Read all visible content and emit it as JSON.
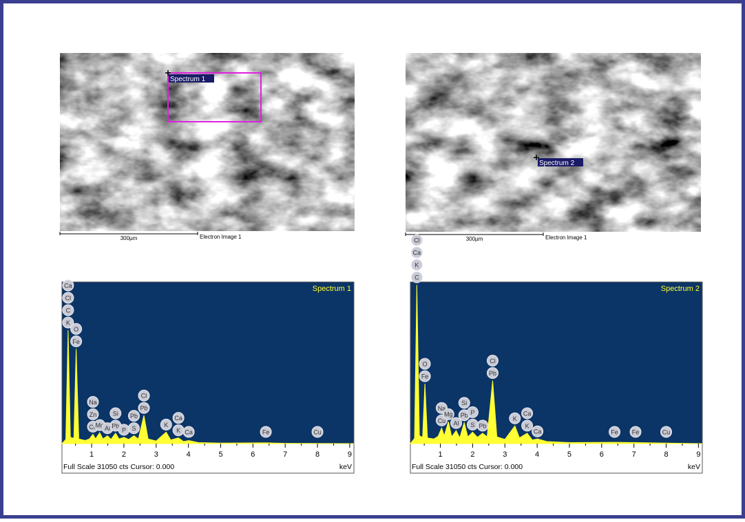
{
  "images": [
    {
      "marker": "Spectrum 1",
      "scale": "300µm",
      "caption": "Electron Image 1"
    },
    {
      "marker": "Spectrum 2",
      "scale": "300µm",
      "caption": "Electron Image 1"
    }
  ],
  "chart_data": [
    {
      "type": "spectrum",
      "title": "Spectrum 1",
      "footer": "Full Scale 31050 cts Cursor: 0.000",
      "x_label": "keV",
      "xlim": [
        0.08,
        9.13
      ],
      "xticks": [
        1,
        2,
        3,
        4,
        5,
        6,
        7,
        8,
        9
      ],
      "ylim": [
        0,
        31050
      ],
      "color": "#ffff33",
      "x": [
        0.08,
        0.2,
        0.27,
        0.34,
        0.45,
        0.52,
        0.6,
        0.8,
        0.93,
        1.04,
        1.12,
        1.25,
        1.35,
        1.49,
        1.6,
        1.74,
        1.85,
        2.0,
        2.15,
        2.31,
        2.45,
        2.62,
        2.75,
        3.0,
        3.31,
        3.45,
        3.69,
        3.85,
        4.01,
        4.3,
        5.0,
        6.4,
        7.0,
        9.13
      ],
      "values": [
        0,
        800,
        21800,
        1200,
        1000,
        18200,
        900,
        600,
        900,
        1800,
        900,
        2100,
        900,
        1500,
        800,
        2000,
        900,
        1200,
        800,
        1500,
        900,
        5400,
        900,
        500,
        2200,
        700,
        1100,
        400,
        600,
        200,
        100,
        150,
        50,
        0
      ],
      "peak_labels": [
        {
          "x": 0.27,
          "labels": [
            "Ca",
            "Cl",
            "C",
            "K"
          ]
        },
        {
          "x": 0.52,
          "labels": [
            "O",
            "Fe"
          ]
        },
        {
          "x": 1.04,
          "labels": [
            "Na",
            "Zn",
            "Cu"
          ]
        },
        {
          "x": 1.25,
          "labels": [
            "Mg"
          ]
        },
        {
          "x": 1.49,
          "labels": [
            "Al"
          ]
        },
        {
          "x": 1.74,
          "labels": [
            "Si",
            "Pb"
          ]
        },
        {
          "x": 2.0,
          "labels": [
            "P"
          ]
        },
        {
          "x": 2.31,
          "labels": [
            "Pb",
            "S"
          ]
        },
        {
          "x": 2.62,
          "labels": [
            "Cl",
            "Pb"
          ]
        },
        {
          "x": 3.31,
          "labels": [
            "K"
          ]
        },
        {
          "x": 3.69,
          "labels": [
            "Ca",
            "K"
          ]
        },
        {
          "x": 4.01,
          "labels": [
            "Ca"
          ]
        },
        {
          "x": 6.4,
          "labels": [
            "Fe"
          ]
        },
        {
          "x": 8.0,
          "labels": [
            "Cu"
          ]
        }
      ]
    },
    {
      "type": "spectrum",
      "title": "Spectrum 2",
      "footer": "Full Scale 31050 cts Cursor: 0.000",
      "x_label": "keV",
      "xlim": [
        0.07,
        9.12
      ],
      "xticks": [
        1,
        2,
        3,
        4,
        5,
        6,
        7,
        8,
        9
      ],
      "ylim": [
        0,
        31050
      ],
      "color": "#ffff33",
      "x": [
        0.07,
        0.2,
        0.27,
        0.35,
        0.45,
        0.52,
        0.6,
        0.8,
        0.93,
        1.04,
        1.12,
        1.25,
        1.35,
        1.49,
        1.6,
        1.74,
        1.85,
        2.0,
        2.15,
        2.31,
        2.45,
        2.62,
        2.75,
        3.0,
        3.31,
        3.45,
        3.69,
        3.85,
        4.01,
        4.3,
        5.0,
        6.4,
        7.05,
        8.0,
        9.12
      ],
      "values": [
        0,
        1000,
        30500,
        1500,
        1200,
        11500,
        1100,
        900,
        1400,
        3000,
        1500,
        4200,
        1300,
        2500,
        1100,
        4000,
        1300,
        2200,
        1200,
        2000,
        1300,
        12100,
        1300,
        800,
        3400,
        1100,
        2000,
        700,
        900,
        400,
        200,
        250,
        200,
        100,
        0
      ],
      "peak_labels": [
        {
          "x": 0.27,
          "labels": [
            "Cl",
            "Ca",
            "K",
            "C"
          ]
        },
        {
          "x": 0.52,
          "labels": [
            "O",
            "Fe"
          ]
        },
        {
          "x": 1.04,
          "labels": [
            "Na",
            "Cu"
          ]
        },
        {
          "x": 1.25,
          "labels": [
            "Mg"
          ]
        },
        {
          "x": 1.49,
          "labels": [
            "Al"
          ]
        },
        {
          "x": 1.74,
          "labels": [
            "Si",
            "Pb"
          ]
        },
        {
          "x": 2.0,
          "labels": [
            "P",
            "S"
          ]
        },
        {
          "x": 2.31,
          "labels": [
            "Pb"
          ]
        },
        {
          "x": 2.62,
          "labels": [
            "Cl",
            "Pb"
          ]
        },
        {
          "x": 3.31,
          "labels": [
            "K"
          ]
        },
        {
          "x": 3.69,
          "labels": [
            "Ca",
            "K"
          ]
        },
        {
          "x": 4.01,
          "labels": [
            "Ca"
          ]
        },
        {
          "x": 6.4,
          "labels": [
            "Fe"
          ]
        },
        {
          "x": 7.05,
          "labels": [
            "Fe"
          ]
        },
        {
          "x": 8.0,
          "labels": [
            "Cu"
          ]
        }
      ]
    }
  ]
}
